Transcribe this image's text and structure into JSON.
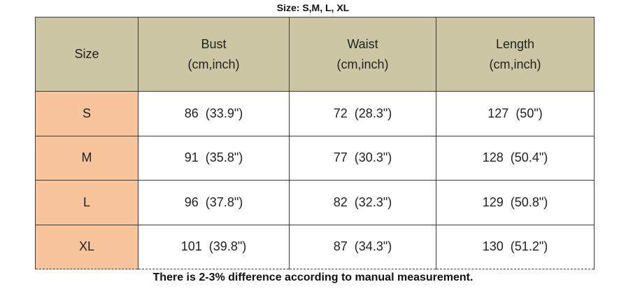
{
  "title": "Size: S,M, L, XL",
  "table": {
    "columns": [
      {
        "name": "Size"
      },
      {
        "name": "Bust",
        "unit": "(cm,inch)"
      },
      {
        "name": "Waist",
        "unit": "(cm,inch)"
      },
      {
        "name": "Length",
        "unit": "(cm,inch)"
      }
    ],
    "rows": [
      [
        "S",
        "86  (33.9\")",
        "72  (28.3\")",
        "127  (50\")"
      ],
      [
        "M",
        "91  (35.8\")",
        "77  (30.3\")",
        "128  (50.4\")"
      ],
      [
        "L",
        "96  (37.8\")",
        "82  (32.3\")",
        "129  (50.8\")"
      ],
      [
        "XL",
        "101  (39.8\")",
        "87  (34.3\")",
        "130  (51.2\")"
      ]
    ]
  },
  "note": "There is 2-3% difference according to manual measurement."
}
